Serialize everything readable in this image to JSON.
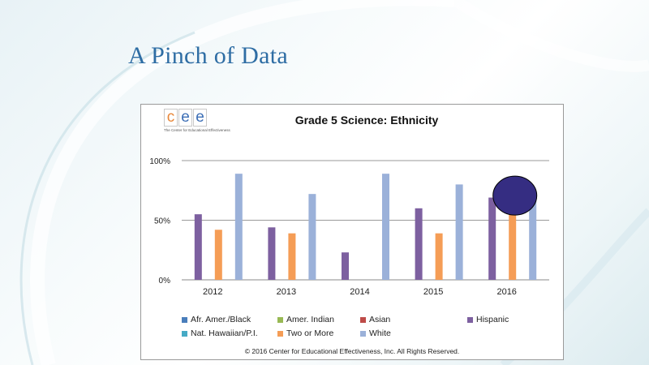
{
  "slide": {
    "title": "A Pinch of Data"
  },
  "logo": {
    "letters": [
      "c",
      "e",
      "e"
    ],
    "tagline": "The Center for Educational Effectiveness"
  },
  "colors": {
    "title": "#2e6da4",
    "series": {
      "Afr. Amer./Black": "#4a7ebb",
      "Amer. Indian": "#98b954",
      "Asian": "#be4b48",
      "Hispanic": "#7d60a0",
      "Nat. Hawaiian/P.I.": "#46aac5",
      "Two or More": "#f59d56",
      "White": "#9bb1d9"
    },
    "marker": "#352d82"
  },
  "chart_data": {
    "type": "bar",
    "title": "Grade 5 Science:  Ethnicity",
    "categories": [
      "2012",
      "2013",
      "2014",
      "2015",
      "2016"
    ],
    "y_ticks": [
      "0%",
      "50%",
      "100%"
    ],
    "ylim": [
      0,
      100
    ],
    "grid": true,
    "legend_position": "bottom",
    "series": [
      {
        "name": "Afr. Amer./Black",
        "values": [
          null,
          null,
          null,
          null,
          null
        ]
      },
      {
        "name": "Amer. Indian",
        "values": [
          null,
          null,
          null,
          null,
          null
        ]
      },
      {
        "name": "Asian",
        "values": [
          null,
          null,
          null,
          null,
          null
        ]
      },
      {
        "name": "Hispanic",
        "values": [
          55,
          44,
          23,
          60,
          69
        ]
      },
      {
        "name": "Nat. Hawaiian/P.I.",
        "values": [
          null,
          null,
          null,
          null,
          null
        ]
      },
      {
        "name": "Two or More",
        "values": [
          42,
          39,
          null,
          39,
          57
        ]
      },
      {
        "name": "White",
        "values": [
          89,
          72,
          89,
          80,
          71
        ]
      }
    ],
    "annotation": {
      "shape": "ellipse",
      "category": "2016",
      "value": 72
    },
    "copyright": "© 2016 Center for Educational Effectiveness, Inc. All Rights Reserved."
  }
}
